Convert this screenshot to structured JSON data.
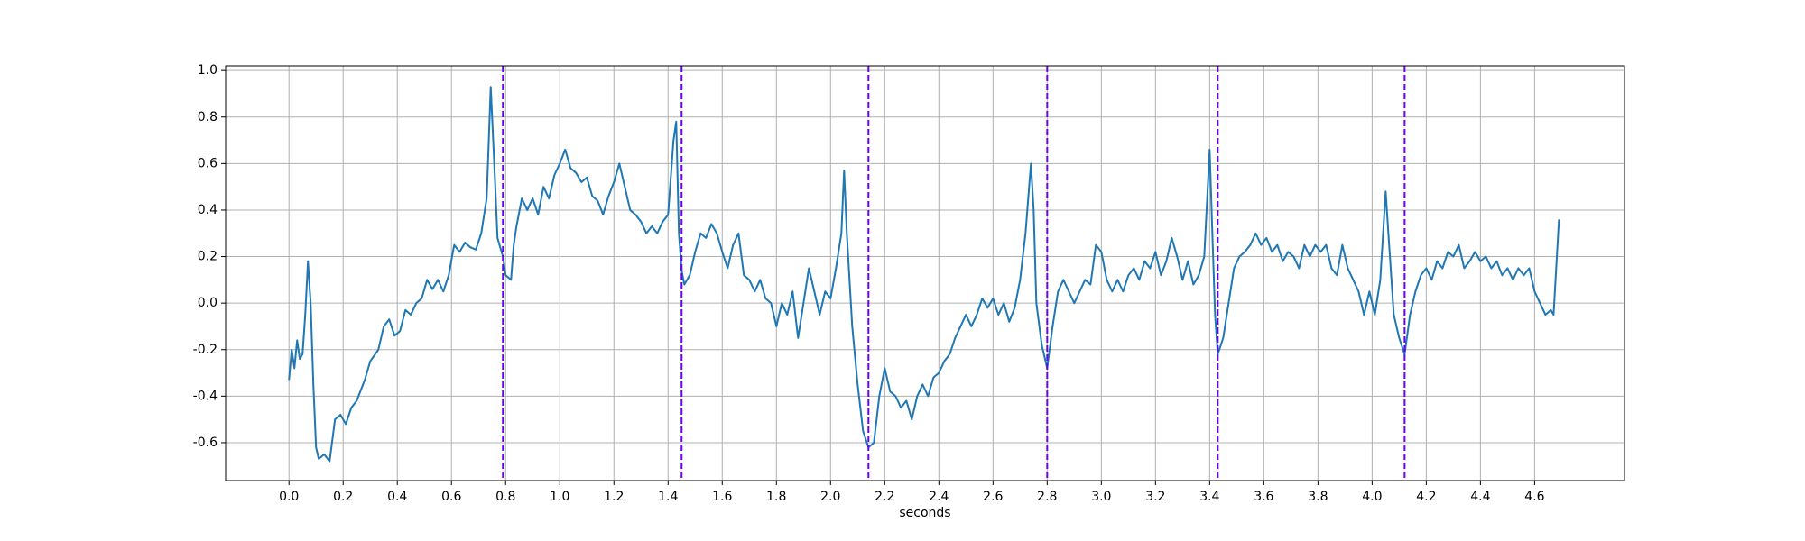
{
  "chart_data": {
    "type": "line",
    "xlabel": "seconds",
    "x": [
      0.0,
      0.01,
      0.02,
      0.03,
      0.04,
      0.05,
      0.06,
      0.07,
      0.08,
      0.09,
      0.1,
      0.11,
      0.13,
      0.15,
      0.17,
      0.19,
      0.21,
      0.23,
      0.25,
      0.28,
      0.3,
      0.33,
      0.35,
      0.37,
      0.39,
      0.41,
      0.43,
      0.45,
      0.47,
      0.49,
      0.51,
      0.53,
      0.55,
      0.57,
      0.59,
      0.61,
      0.63,
      0.65,
      0.67,
      0.69,
      0.71,
      0.73,
      0.745,
      0.76,
      0.77,
      0.79,
      0.8,
      0.82,
      0.83,
      0.84,
      0.86,
      0.88,
      0.9,
      0.92,
      0.94,
      0.96,
      0.98,
      1.0,
      1.02,
      1.04,
      1.06,
      1.08,
      1.1,
      1.12,
      1.14,
      1.16,
      1.18,
      1.2,
      1.22,
      1.24,
      1.26,
      1.28,
      1.3,
      1.32,
      1.34,
      1.36,
      1.38,
      1.4,
      1.42,
      1.43,
      1.44,
      1.45,
      1.46,
      1.48,
      1.5,
      1.52,
      1.54,
      1.56,
      1.58,
      1.6,
      1.62,
      1.64,
      1.66,
      1.68,
      1.7,
      1.72,
      1.74,
      1.76,
      1.78,
      1.8,
      1.82,
      1.84,
      1.86,
      1.88,
      1.9,
      1.92,
      1.94,
      1.96,
      1.98,
      2.0,
      2.02,
      2.04,
      2.05,
      2.06,
      2.08,
      2.1,
      2.12,
      2.14,
      2.16,
      2.18,
      2.2,
      2.22,
      2.24,
      2.26,
      2.28,
      2.3,
      2.32,
      2.34,
      2.36,
      2.38,
      2.4,
      2.42,
      2.44,
      2.46,
      2.48,
      2.5,
      2.52,
      2.54,
      2.56,
      2.58,
      2.6,
      2.62,
      2.64,
      2.66,
      2.68,
      2.7,
      2.72,
      2.74,
      2.75,
      2.76,
      2.78,
      2.8,
      2.82,
      2.84,
      2.86,
      2.88,
      2.9,
      2.92,
      2.94,
      2.96,
      2.98,
      3.0,
      3.02,
      3.04,
      3.06,
      3.08,
      3.1,
      3.12,
      3.14,
      3.16,
      3.18,
      3.2,
      3.22,
      3.24,
      3.26,
      3.28,
      3.3,
      3.32,
      3.34,
      3.36,
      3.38,
      3.4,
      3.41,
      3.42,
      3.43,
      3.45,
      3.47,
      3.49,
      3.51,
      3.53,
      3.55,
      3.57,
      3.59,
      3.61,
      3.63,
      3.65,
      3.67,
      3.69,
      3.71,
      3.73,
      3.75,
      3.77,
      3.79,
      3.81,
      3.83,
      3.85,
      3.87,
      3.89,
      3.91,
      3.93,
      3.95,
      3.97,
      3.99,
      4.01,
      4.03,
      4.05,
      4.06,
      4.08,
      4.1,
      4.12,
      4.14,
      4.16,
      4.18,
      4.2,
      4.22,
      4.24,
      4.26,
      4.28,
      4.3,
      4.32,
      4.34,
      4.36,
      4.38,
      4.4,
      4.42,
      4.44,
      4.46,
      4.48,
      4.5,
      4.52,
      4.54,
      4.56,
      4.58,
      4.6,
      4.62,
      4.64,
      4.66,
      4.67,
      4.69
    ],
    "series": [
      {
        "color": "#1f77b4",
        "values": [
          -0.33,
          -0.2,
          -0.28,
          -0.16,
          -0.24,
          -0.22,
          -0.05,
          0.18,
          0.0,
          -0.35,
          -0.62,
          -0.67,
          -0.65,
          -0.68,
          -0.5,
          -0.48,
          -0.52,
          -0.45,
          -0.42,
          -0.33,
          -0.25,
          -0.2,
          -0.1,
          -0.07,
          -0.14,
          -0.12,
          -0.03,
          -0.05,
          0.0,
          0.02,
          0.1,
          0.06,
          0.1,
          0.05,
          0.12,
          0.25,
          0.22,
          0.26,
          0.24,
          0.23,
          0.3,
          0.45,
          0.93,
          0.55,
          0.28,
          0.2,
          0.12,
          0.1,
          0.25,
          0.33,
          0.45,
          0.4,
          0.45,
          0.38,
          0.5,
          0.45,
          0.55,
          0.6,
          0.66,
          0.58,
          0.56,
          0.52,
          0.54,
          0.46,
          0.44,
          0.38,
          0.46,
          0.52,
          0.6,
          0.5,
          0.4,
          0.38,
          0.35,
          0.3,
          0.33,
          0.3,
          0.35,
          0.38,
          0.7,
          0.78,
          0.3,
          0.14,
          0.08,
          0.12,
          0.22,
          0.3,
          0.28,
          0.34,
          0.3,
          0.22,
          0.15,
          0.25,
          0.3,
          0.12,
          0.1,
          0.05,
          0.1,
          0.02,
          0.0,
          -0.1,
          0.0,
          -0.05,
          0.05,
          -0.15,
          0.0,
          0.15,
          0.05,
          -0.05,
          0.05,
          0.02,
          0.15,
          0.3,
          0.57,
          0.3,
          -0.1,
          -0.35,
          -0.55,
          -0.62,
          -0.6,
          -0.4,
          -0.28,
          -0.38,
          -0.4,
          -0.45,
          -0.42,
          -0.5,
          -0.4,
          -0.35,
          -0.4,
          -0.32,
          -0.3,
          -0.25,
          -0.22,
          -0.15,
          -0.1,
          -0.05,
          -0.1,
          -0.05,
          0.02,
          -0.02,
          0.02,
          -0.05,
          0.0,
          -0.08,
          -0.02,
          0.1,
          0.3,
          0.6,
          0.4,
          0.0,
          -0.18,
          -0.28,
          -0.1,
          0.05,
          0.1,
          0.05,
          0.0,
          0.05,
          0.1,
          0.08,
          0.25,
          0.22,
          0.1,
          0.05,
          0.1,
          0.05,
          0.12,
          0.15,
          0.1,
          0.18,
          0.15,
          0.22,
          0.12,
          0.18,
          0.28,
          0.2,
          0.1,
          0.18,
          0.08,
          0.12,
          0.2,
          0.66,
          0.3,
          -0.05,
          -0.22,
          -0.15,
          0.0,
          0.15,
          0.2,
          0.22,
          0.25,
          0.3,
          0.25,
          0.28,
          0.22,
          0.25,
          0.18,
          0.22,
          0.2,
          0.15,
          0.25,
          0.2,
          0.25,
          0.22,
          0.25,
          0.15,
          0.12,
          0.25,
          0.15,
          0.1,
          0.05,
          -0.05,
          0.05,
          -0.05,
          0.1,
          0.48,
          0.3,
          -0.05,
          -0.15,
          -0.22,
          -0.05,
          0.05,
          0.12,
          0.15,
          0.1,
          0.18,
          0.15,
          0.22,
          0.2,
          0.25,
          0.15,
          0.18,
          0.22,
          0.18,
          0.2,
          0.15,
          0.18,
          0.12,
          0.15,
          0.1,
          0.15,
          0.12,
          0.15,
          0.05,
          0.0,
          -0.05,
          -0.03,
          -0.05,
          0.36
        ]
      }
    ],
    "vlines": {
      "color": "#6a00f0",
      "values": [
        0.79,
        1.45,
        2.14,
        2.8,
        3.43,
        4.12
      ]
    },
    "xlim": [
      -0.234,
      4.932
    ],
    "ylim": [
      -0.763,
      1.02
    ],
    "xticks": [
      {
        "value": 0,
        "label": "0.0"
      },
      0.2,
      0.4,
      0.6,
      0.8,
      {
        "value": 1,
        "label": "1.0"
      },
      1.2,
      1.4,
      1.6,
      1.8,
      {
        "value": 2,
        "label": "2.0"
      },
      2.2,
      2.4,
      2.6,
      2.8,
      {
        "value": 3,
        "label": "3.0"
      },
      3.2,
      3.4,
      3.6,
      3.8,
      {
        "value": 4,
        "label": "4.0"
      },
      4.2,
      4.4,
      4.6
    ],
    "yticks": [
      -0.6,
      -0.4,
      -0.2,
      {
        "value": 0,
        "label": "0.0"
      },
      0.2,
      0.4,
      0.6,
      0.8,
      {
        "value": 1,
        "label": "1.0"
      }
    ],
    "grid": true
  }
}
